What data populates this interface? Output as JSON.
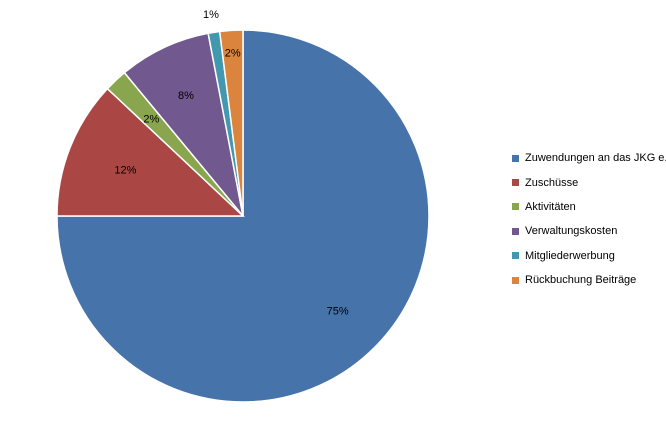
{
  "chart_data": {
    "type": "pie",
    "title": "",
    "start_angle_deg": 0,
    "direction": "clockwise",
    "legend_position": "right",
    "slices": [
      {
        "label": "Zuwendungen an das JKG e.V.",
        "value": 75,
        "data_label": "75%",
        "color": "#4673AA"
      },
      {
        "label": "Zuschüsse",
        "value": 12,
        "data_label": "12%",
        "color": "#AA4643"
      },
      {
        "label": "Aktivitäten",
        "value": 2,
        "data_label": "2%",
        "color": "#89A54E"
      },
      {
        "label": "Verwaltungskosten",
        "value": 8,
        "data_label": "8%",
        "color": "#71588F"
      },
      {
        "label": "Mitgliederwerbung",
        "value": 1,
        "data_label": "1%",
        "color": "#4198AF"
      },
      {
        "label": "Rückbuchung Beiträge",
        "value": 2,
        "data_label": "2%",
        "color": "#DB843D"
      }
    ]
  }
}
